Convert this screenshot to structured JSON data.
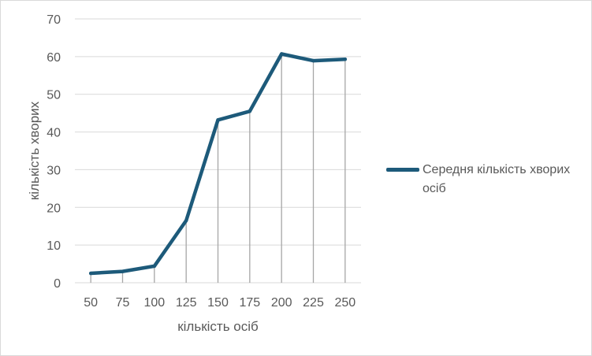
{
  "chart_data": {
    "type": "line",
    "x": [
      50,
      75,
      100,
      125,
      150,
      175,
      200,
      225,
      250
    ],
    "categories": [
      "50",
      "75",
      "100",
      "125",
      "150",
      "175",
      "200",
      "225",
      "250"
    ],
    "series": [
      {
        "name": "Середня кількість хворих осіб",
        "values": [
          2.5,
          3.0,
          4.4,
          16.5,
          43.2,
          45.5,
          60.7,
          58.9,
          59.3
        ]
      }
    ],
    "xlabel": "кількість осіб",
    "ylabel": "кількість хворих",
    "ylim": [
      0,
      70
    ],
    "yticks": [
      0,
      10,
      20,
      30,
      40,
      50,
      60,
      70
    ],
    "grid": true,
    "drop_lines": true,
    "legend_position": "right",
    "colors": {
      "series": "#1d5a7a",
      "grid": "#d9d9d9",
      "drop_line": "#a6a6a6",
      "text": "#595959"
    }
  }
}
